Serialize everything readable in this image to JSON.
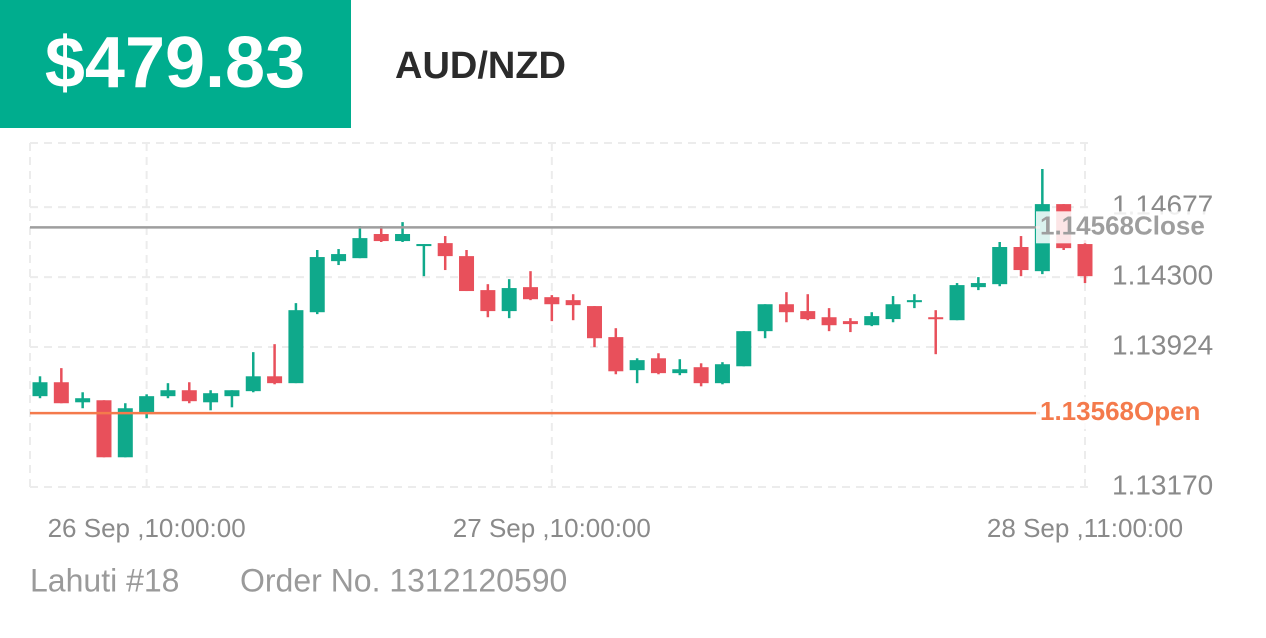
{
  "header": {
    "amount": "$479.83",
    "symbol": "AUD/NZD"
  },
  "chart_data": {
    "type": "candlestick",
    "categories": [
      null,
      null,
      null,
      null,
      null,
      "26 Sep ,10:00:00",
      null,
      null,
      null,
      null,
      null,
      null,
      null,
      null,
      null,
      null,
      null,
      null,
      null,
      null,
      null,
      null,
      null,
      null,
      "27 Sep ,10:00:00",
      null,
      null,
      null,
      null,
      null,
      null,
      null,
      null,
      null,
      null,
      null,
      null,
      null,
      null,
      null,
      null,
      null,
      null,
      null,
      null,
      null,
      null,
      null,
      null,
      "28 Sep ,11:00:00"
    ],
    "open": [
      1.13659,
      1.13734,
      1.13626,
      1.13637,
      1.1333,
      1.13572,
      1.13659,
      1.13691,
      1.13626,
      1.13659,
      1.13686,
      1.13766,
      1.13729,
      1.14111,
      1.14386,
      1.14402,
      1.14532,
      1.14494,
      1.14467,
      1.14483,
      1.14413,
      1.1423,
      1.14117,
      1.14246,
      1.14192,
      1.14176,
      1.14144,
      1.13977,
      1.13799,
      1.13863,
      1.13783,
      1.13815,
      1.13729,
      1.1382,
      1.14009,
      1.14154,
      1.14117,
      1.14084,
      1.14063,
      1.14041,
      1.14074,
      1.14165,
      1.14084,
      1.14068,
      1.14246,
      1.14262,
      1.14462,
      1.14332,
      1.14693,
      1.14478
    ],
    "high": [
      1.13766,
      1.1381,
      1.1368,
      1.13637,
      1.13621,
      1.13669,
      1.13729,
      1.13734,
      1.13691,
      1.13691,
      1.13896,
      1.13939,
      1.1416,
      1.14446,
      1.14451,
      1.14575,
      1.14575,
      1.14596,
      1.14478,
      1.14521,
      1.14446,
      1.14262,
      1.14289,
      1.14332,
      1.14203,
      1.14208,
      1.14144,
      1.14025,
      1.13863,
      1.1389,
      1.13858,
      1.13836,
      1.13842,
      1.14009,
      1.14154,
      1.14219,
      1.14208,
      1.14133,
      1.14079,
      1.14111,
      1.14198,
      1.14208,
      1.14122,
      1.14268,
      1.143,
      1.14489,
      1.14521,
      1.14882,
      1.14693,
      1.14499
    ],
    "low": [
      1.13648,
      1.13621,
      1.13594,
      1.1333,
      1.1333,
      1.1354,
      1.13648,
      1.13621,
      1.13583,
      1.13599,
      1.1368,
      1.13723,
      1.13729,
      1.14101,
      1.14365,
      1.14402,
      1.14489,
      1.14489,
      1.14305,
      1.14338,
      1.14225,
      1.14084,
      1.14079,
      1.14176,
      1.14063,
      1.14068,
      1.13923,
      1.13777,
      1.13729,
      1.13777,
      1.13772,
      1.13712,
      1.13723,
      1.1382,
      1.13971,
      1.14057,
      1.14068,
      1.14009,
      1.14004,
      1.14036,
      1.14057,
      1.14133,
      1.13885,
      1.14068,
      1.1423,
      1.14251,
      1.14305,
      1.14316,
      1.14446,
      1.14268
    ],
    "close": [
      1.13734,
      1.13621,
      1.13648,
      1.1333,
      1.13594,
      1.13659,
      1.13691,
      1.13632,
      1.13675,
      1.13691,
      1.13766,
      1.13729,
      1.14122,
      1.14408,
      1.14424,
      1.1451,
      1.14494,
      1.14532,
      1.14478,
      1.14413,
      1.14225,
      1.14117,
      1.14241,
      1.14181,
      1.14154,
      1.14149,
      1.13971,
      1.13793,
      1.13853,
      1.13783,
      1.13804,
      1.13729,
      1.13831,
      1.14009,
      1.14154,
      1.14111,
      1.14074,
      1.14041,
      1.14047,
      1.1409,
      1.14154,
      1.14176,
      1.14074,
      1.14257,
      1.14268,
      1.14462,
      1.14338,
      1.14693,
      1.14456,
      1.14305
    ],
    "up_color": "#0fa98b",
    "down_color": "#e8505b",
    "ylim": [
      1.1317,
      1.15022
    ],
    "yticks": [
      1.14677,
      {
        "value": 1.143,
        "label": "1.14300"
      },
      1.13924,
      {
        "value": 1.1317,
        "label": "1.13170"
      }
    ],
    "grid": true,
    "close_line": {
      "value": 1.14568,
      "label": "Close",
      "color": "#9e9e9e"
    },
    "open_line": {
      "value": 1.13568,
      "label": "Open",
      "color": "#f47a4c"
    }
  },
  "footer": {
    "account": "Lahuti #18",
    "order": "Order No. 1312120590"
  }
}
